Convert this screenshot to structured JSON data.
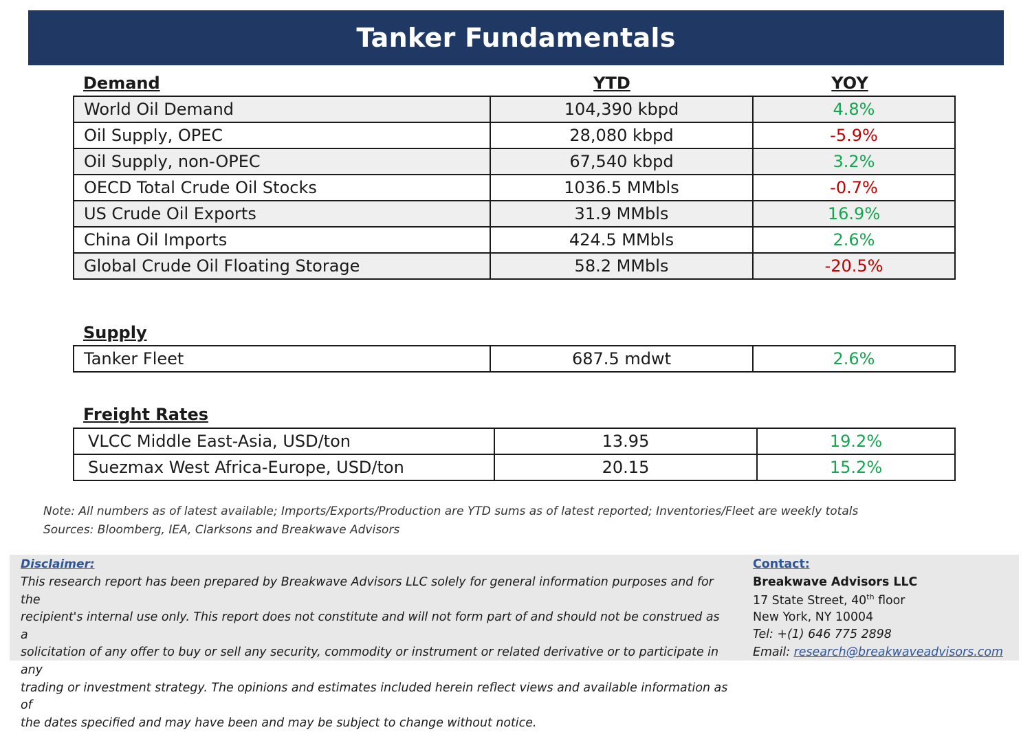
{
  "title": "Tanker Fundamentals",
  "headers": {
    "ytd": "YTD",
    "yoy": "YOY"
  },
  "demand": {
    "heading": "Demand",
    "rows": [
      {
        "label": "World Oil Demand",
        "ytd": "104,390 kbpd",
        "yoy": "4.8%"
      },
      {
        "label": "Oil Supply, OPEC",
        "ytd": "28,080 kbpd",
        "yoy": "-5.9%"
      },
      {
        "label": "Oil Supply, non-OPEC",
        "ytd": "67,540 kbpd",
        "yoy": "3.2%"
      },
      {
        "label": "OECD Total Crude Oil Stocks",
        "ytd": "1036.5 MMbls",
        "yoy": "-0.7%"
      },
      {
        "label": "US Crude Oil Exports",
        "ytd": "31.9 MMbls",
        "yoy": "16.9%"
      },
      {
        "label": "China Oil Imports",
        "ytd": "424.5 MMbls",
        "yoy": "2.6%"
      },
      {
        "label": "Global Crude Oil Floating Storage",
        "ytd": "58.2 MMbls",
        "yoy": "-20.5%"
      }
    ]
  },
  "supply": {
    "heading": "Supply",
    "rows": [
      {
        "label": "Tanker Fleet",
        "ytd": "687.5 mdwt",
        "yoy": "2.6%"
      }
    ]
  },
  "freight": {
    "heading": "Freight Rates",
    "rows": [
      {
        "label": "VLCC Middle East-Asia, USD/ton",
        "ytd": "13.95",
        "yoy": "19.2%"
      },
      {
        "label": "Suezmax West Africa-Europe, USD/ton",
        "ytd": "20.15",
        "yoy": "15.2%"
      }
    ]
  },
  "notes": {
    "note": "Note:  All numbers as of latest available; Imports/Exports/Production are YTD sums as of latest reported; Inventories/Fleet are weekly totals",
    "sources": "Sources: Bloomberg, IEA, Clarksons and Breakwave Advisors"
  },
  "disclaimer": {
    "title": "Disclaimer:",
    "lines": [
      "This research report has been prepared by Breakwave Advisors LLC solely for general information purposes and for the",
      "recipient's internal use only. This report does not constitute and will not form part of and should not be construed as a",
      "solicitation of any offer to buy or sell any security, commodity or instrument or related derivative or to participate in any",
      "trading or investment strategy. The opinions and estimates included herein reflect views and available information as of",
      "the dates specified and may have been and may be subject to change without notice."
    ]
  },
  "contact": {
    "title": "Contact:",
    "company": "Breakwave Advisors LLC",
    "street_pre": "17 State Street, 40",
    "street_sup": "th",
    "street_post": " floor",
    "city": "New York, NY 10004",
    "tel": "Tel: +(1) 646 775 2898",
    "email_label": "Email: ",
    "email": "research@breakwaveadvisors.com"
  },
  "colors": {
    "banner": "#1f3864",
    "positive": "#14a750",
    "negative": "#c00000",
    "link": "#2f5597"
  }
}
